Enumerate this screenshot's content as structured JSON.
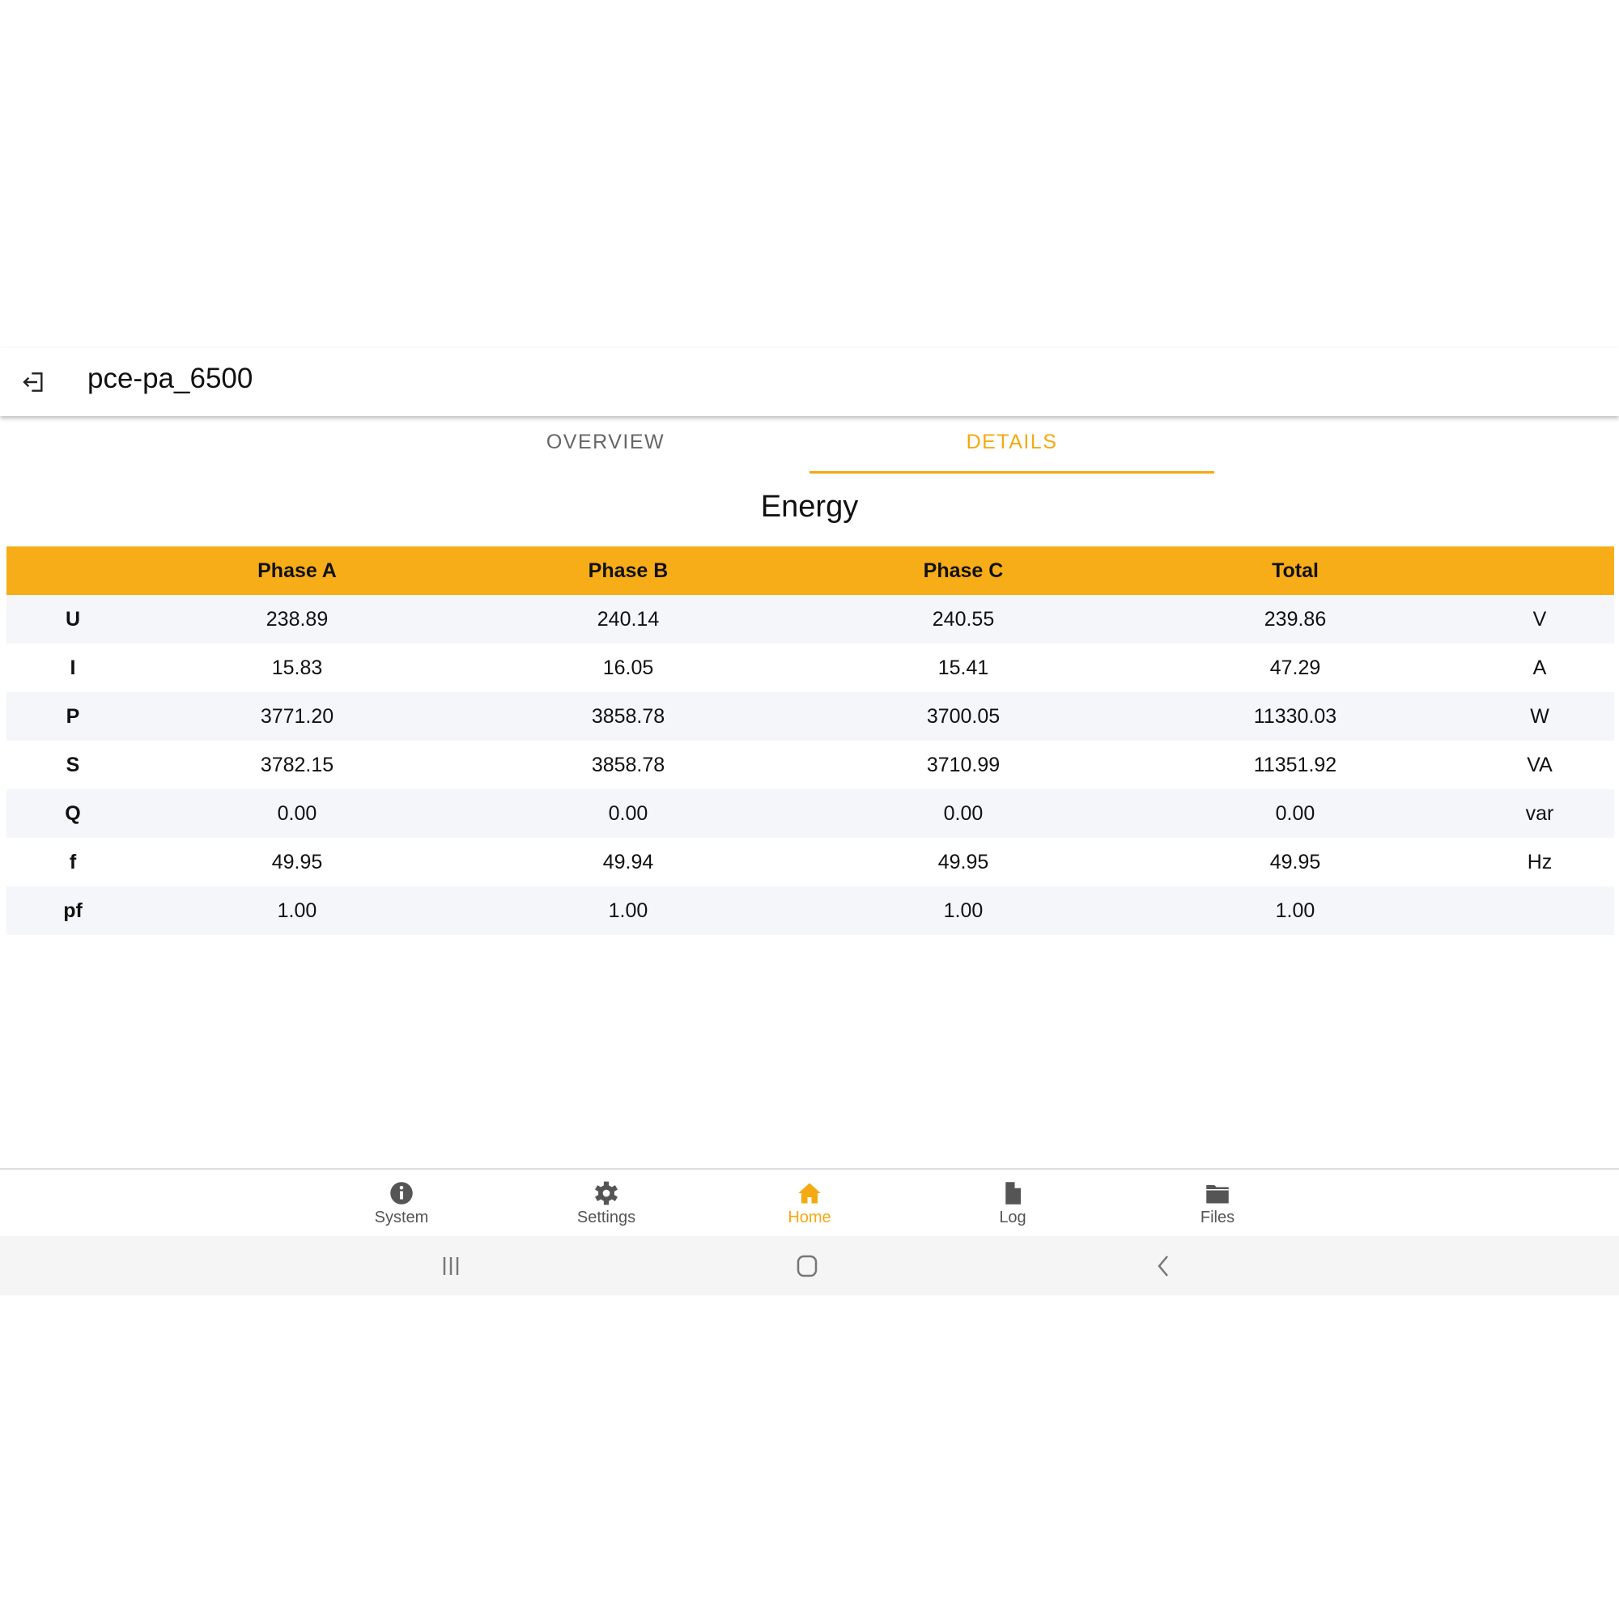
{
  "header": {
    "title": "pce-pa_6500",
    "back_icon": "exit-icon"
  },
  "tabs": [
    {
      "label": "OVERVIEW",
      "active": false
    },
    {
      "label": "DETAILS",
      "active": true
    }
  ],
  "section_title": "Energy",
  "accent_color": "#f7ad17",
  "table": {
    "columns": [
      "",
      "Phase A",
      "Phase B",
      "Phase C",
      "Total",
      ""
    ],
    "rows": [
      [
        "U",
        "238.89",
        "240.14",
        "240.55",
        "239.86",
        "V"
      ],
      [
        "I",
        "15.83",
        "16.05",
        "15.41",
        "47.29",
        "A"
      ],
      [
        "P",
        "3771.20",
        "3858.78",
        "3700.05",
        "11330.03",
        "W"
      ],
      [
        "S",
        "3782.15",
        "3858.78",
        "3710.99",
        "11351.92",
        "VA"
      ],
      [
        "Q",
        "0.00",
        "0.00",
        "0.00",
        "0.00",
        "var"
      ],
      [
        "f",
        "49.95",
        "49.94",
        "49.95",
        "49.95",
        "Hz"
      ],
      [
        "pf",
        "1.00",
        "1.00",
        "1.00",
        "1.00",
        ""
      ]
    ]
  },
  "bottom_nav": [
    {
      "label": "System",
      "icon": "info-icon",
      "active": false
    },
    {
      "label": "Settings",
      "icon": "gear-icon",
      "active": false
    },
    {
      "label": "Home",
      "icon": "home-icon",
      "active": true
    },
    {
      "label": "Log",
      "icon": "file-icon",
      "active": false
    },
    {
      "label": "Files",
      "icon": "folder-icon",
      "active": false
    }
  ]
}
